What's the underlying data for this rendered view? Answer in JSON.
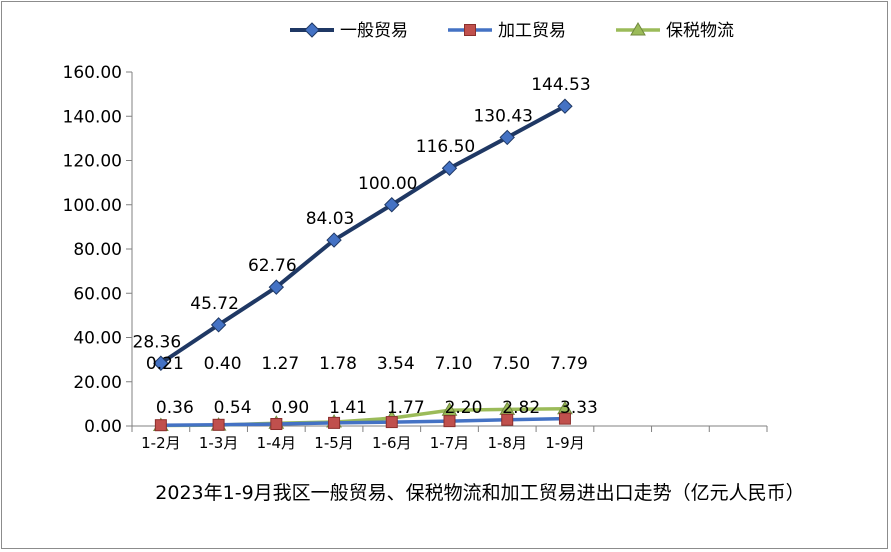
{
  "chart_data": {
    "type": "line",
    "title": "2023年1-9月我区一般贸易、保税物流和加工贸易进出口走势（亿元人民币）",
    "categories": [
      "1-2月",
      "1-3月",
      "1-4月",
      "1-5月",
      "1-6月",
      "1-7月",
      "1-8月",
      "1-9月"
    ],
    "x_extra_slots": 3,
    "ylim": [
      0,
      160
    ],
    "yticks": [
      0,
      20,
      40,
      60,
      80,
      100,
      120,
      140,
      160
    ],
    "ytick_labels": [
      "0.00",
      "20.00",
      "40.00",
      "60.00",
      "80.00",
      "100.00",
      "120.00",
      "140.00",
      "160.00"
    ],
    "legend_position": "top",
    "grid": false,
    "series": [
      {
        "name": "一般贸易",
        "color": "#1f3864",
        "marker": "diamond",
        "marker_color": "#4472c4",
        "values": [
          28.36,
          45.72,
          62.76,
          84.03,
          100.0,
          116.5,
          130.43,
          144.53
        ],
        "labels": [
          "28.36",
          "45.72",
          "62.76",
          "84.03",
          "100.00",
          "116.50",
          "130.43",
          "144.53"
        ]
      },
      {
        "name": "加工贸易",
        "color": "#4472c4",
        "marker": "square",
        "marker_color": "#c0504d",
        "values": [
          0.36,
          0.54,
          0.9,
          1.41,
          1.77,
          2.2,
          2.82,
          3.33
        ],
        "labels": [
          "0.36",
          "0.54",
          "0.90",
          "1.41",
          "1.77",
          "2.20",
          "2.82",
          "3.33"
        ]
      },
      {
        "name": "保税物流",
        "color": "#9bbb59",
        "marker": "triangle",
        "marker_color": "#9bbb59",
        "values": [
          0.21,
          0.4,
          1.27,
          1.78,
          3.54,
          7.1,
          7.5,
          7.79
        ],
        "labels": [
          "0.21",
          "0.40",
          "1.27",
          "1.78",
          "3.54",
          "7.10",
          "7.50",
          "7.79"
        ]
      }
    ]
  }
}
